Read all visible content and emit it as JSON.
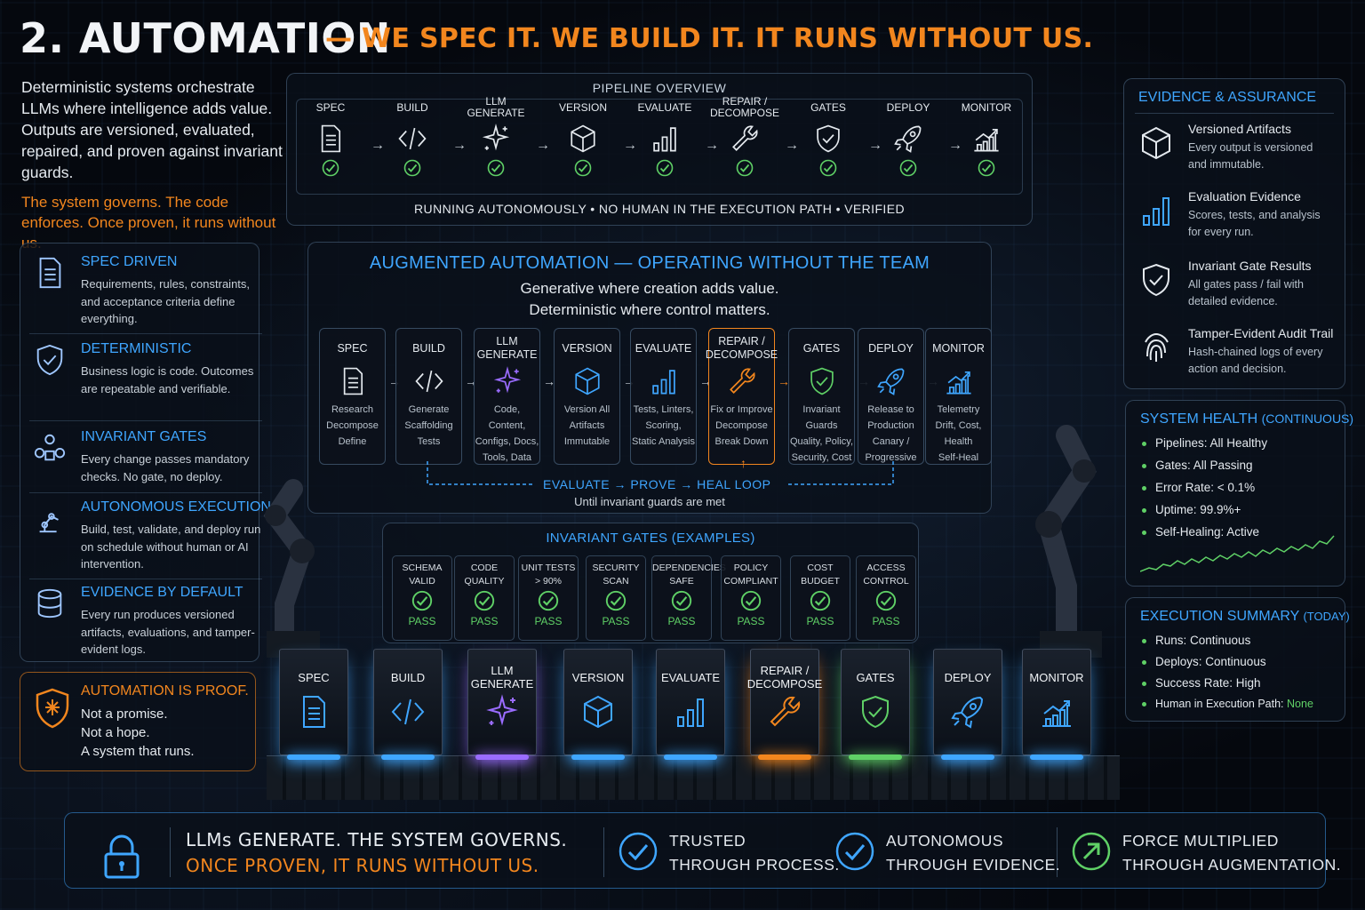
{
  "header": {
    "title": "2. AUTOMATION",
    "subtitle": "— WE SPEC IT. WE BUILD IT. IT RUNS WITHOUT US."
  },
  "intro": {
    "text": "Deterministic systems orchestrate LLMs where intelligence adds value. Outputs are versioned, evaluated, repaired, and proven against invariant guards.",
    "highlight": "The system governs. The code enforces. Once proven, it runs without us."
  },
  "left_panel": {
    "items": [
      {
        "title": "SPEC DRIVEN",
        "desc": "Requirements, rules, constraints, and acceptance criteria define everything.",
        "icon": "document-icon"
      },
      {
        "title": "DETERMINISTIC",
        "desc": "Business logic is code. Outcomes are repeatable and verifiable.",
        "icon": "shield-check-icon"
      },
      {
        "title": "INVARIANT GATES",
        "desc": "Every change passes mandatory checks. No gate, no deploy.",
        "icon": "gate-network-icon"
      },
      {
        "title": "AUTONOMOUS EXECUTION",
        "desc": "Build, test, validate, and deploy run on schedule without human or AI intervention.",
        "icon": "robot-arm-icon"
      },
      {
        "title": "EVIDENCE BY DEFAULT",
        "desc": "Every run produces versioned artifacts, evaluations, and tamper-evident logs.",
        "icon": "database-icon"
      }
    ],
    "proof": {
      "title": "AUTOMATION IS PROOF.",
      "lines": [
        "Not a promise.",
        "Not a hope.",
        "A system that runs."
      ]
    }
  },
  "pipeline_overview": {
    "title": "PIPELINE OVERVIEW",
    "stages": [
      "SPEC",
      "BUILD",
      "LLM GENERATE",
      "VERSION",
      "EVALUATE",
      "REPAIR / DECOMPOSE",
      "GATES",
      "DEPLOY",
      "MONITOR"
    ],
    "footer": "RUNNING AUTONOMOUSLY • NO HUMAN IN THE EXECUTION PATH • VERIFIED"
  },
  "augmented": {
    "title": "AUGMENTED AUTOMATION — OPERATING WITHOUT THE TEAM",
    "sub1": "Generative where creation adds value.",
    "sub2": "Deterministic where control matters.",
    "cards": [
      {
        "label": "SPEC",
        "desc": [
          "Research",
          "Decompose",
          "Define"
        ]
      },
      {
        "label": "BUILD",
        "desc": [
          "Generate",
          "Scaffolding",
          "Tests"
        ]
      },
      {
        "label": "LLM GENERATE",
        "desc": [
          "Code, Content,",
          "Configs, Docs,",
          "Tools, Data"
        ]
      },
      {
        "label": "VERSION",
        "desc": [
          "Version All",
          "Artifacts",
          "Immutable"
        ]
      },
      {
        "label": "EVALUATE",
        "desc": [
          "Tests, Linters,",
          "Scoring,",
          "Static Analysis"
        ]
      },
      {
        "label": "REPAIR / DECOMPOSE",
        "desc": [
          "Fix or Improve",
          "Decompose",
          "Break Down"
        ]
      },
      {
        "label": "GATES",
        "desc": [
          "Invariant",
          "Guards",
          "Quality, Policy,",
          "Security, Cost"
        ]
      },
      {
        "label": "DEPLOY",
        "desc": [
          "Release to",
          "Production",
          "Canary /",
          "Progressive"
        ]
      },
      {
        "label": "MONITOR",
        "desc": [
          "Telemetry",
          "Drift, Cost,",
          "Health",
          "Self-Heal"
        ]
      }
    ],
    "loop": "EVALUATE → PROVE → HEAL LOOP",
    "loop_note": "Until invariant guards are met"
  },
  "gates": {
    "title": "INVARIANT GATES (EXAMPLES)",
    "items": [
      {
        "label": [
          "SCHEMA",
          "VALID"
        ],
        "status": "PASS"
      },
      {
        "label": [
          "CODE",
          "QUALITY"
        ],
        "status": "PASS"
      },
      {
        "label": [
          "UNIT TESTS",
          "> 90%"
        ],
        "status": "PASS"
      },
      {
        "label": [
          "SECURITY",
          "SCAN"
        ],
        "status": "PASS"
      },
      {
        "label": [
          "DEPENDENCIES",
          "SAFE"
        ],
        "status": "PASS"
      },
      {
        "label": [
          "POLICY",
          "COMPLIANT"
        ],
        "status": "PASS"
      },
      {
        "label": [
          "COST",
          "BUDGET"
        ],
        "status": "PASS"
      },
      {
        "label": [
          "ACCESS",
          "CONTROL"
        ],
        "status": "PASS"
      }
    ]
  },
  "machines": [
    "SPEC",
    "BUILD",
    "LLM GENERATE",
    "VERSION",
    "EVALUATE",
    "REPAIR / DECOMPOSE",
    "GATES",
    "DEPLOY",
    "MONITOR"
  ],
  "evidence": {
    "title": "EVIDENCE & ASSURANCE",
    "items": [
      {
        "title": "Versioned Artifacts",
        "desc": "Every output is versioned and immutable.",
        "icon": "cube-icon"
      },
      {
        "title": "Evaluation Evidence",
        "desc": "Scores, tests, and analysis for every run.",
        "icon": "bar-chart-icon"
      },
      {
        "title": "Invariant Gate Results",
        "desc": "All gates pass / fail with detailed evidence.",
        "icon": "shield-check-icon"
      },
      {
        "title": "Tamper-Evident Audit Trail",
        "desc": "Hash-chained logs of every action and decision.",
        "icon": "fingerprint-icon"
      }
    ]
  },
  "system_health": {
    "title": "SYSTEM HEALTH",
    "title_suffix": "(CONTINUOUS)",
    "items": [
      "Pipelines: All Healthy",
      "Gates: All Passing",
      "Error Rate: < 0.1%",
      "Uptime: 99.9%+",
      "Self-Healing: Active"
    ]
  },
  "execution_summary": {
    "title": "EXECUTION SUMMARY",
    "title_suffix": "(TODAY)",
    "items": [
      "Runs: Continuous",
      "Deploys: Continuous",
      "Success Rate: High"
    ],
    "human_label": "Human in Execution Path:",
    "human_value": "None"
  },
  "footer": {
    "line1": "LLMs GENERATE. THE SYSTEM GOVERNS.",
    "line2": "ONCE PROVEN, IT RUNS WITHOUT US.",
    "items": [
      {
        "l1": "TRUSTED",
        "l2": "THROUGH PROCESS."
      },
      {
        "l1": "AUTONOMOUS",
        "l2": "THROUGH EVIDENCE."
      },
      {
        "l1": "FORCE MULTIPLIED",
        "l2": "THROUGH AUGMENTATION."
      }
    ]
  },
  "colors": {
    "accent_blue": "#3fa6ff",
    "accent_orange": "#f2861e",
    "accent_green": "#5fd066",
    "accent_purple": "#9a6cff",
    "background": "#05080e"
  }
}
